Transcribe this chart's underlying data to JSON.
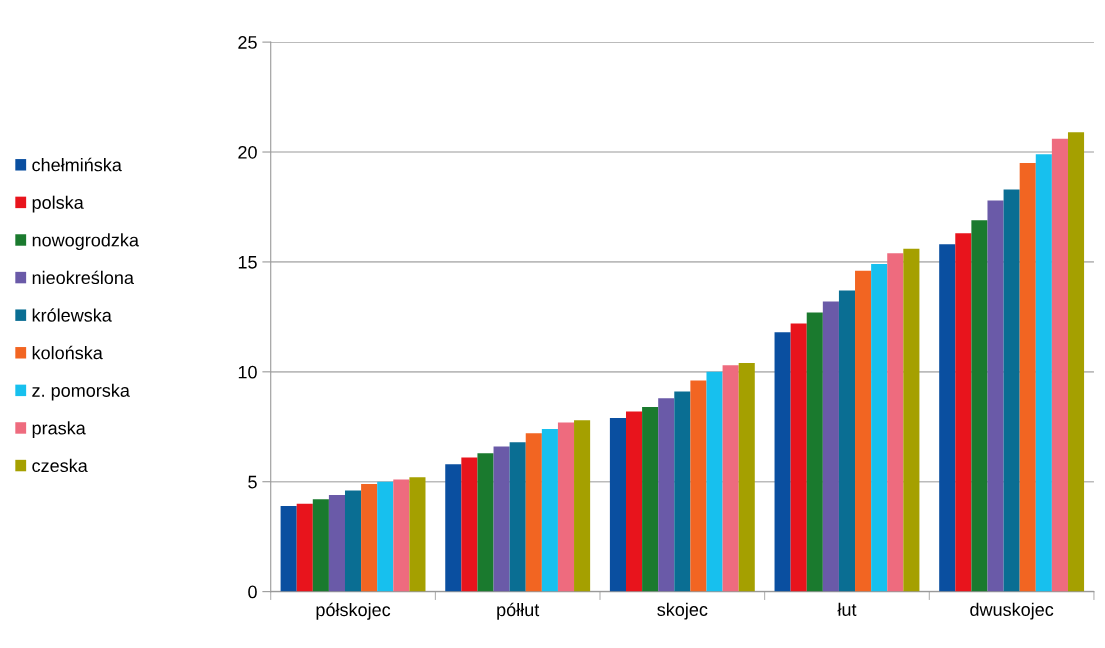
{
  "chart_data": {
    "type": "bar",
    "categories": [
      "półskojec",
      "półłut",
      "skojec",
      "łut",
      "dwuskojec"
    ],
    "series": [
      {
        "name": "chełmińska",
        "color": "#0a4fa0",
        "values": [
          3.9,
          5.8,
          7.9,
          11.8,
          15.8
        ]
      },
      {
        "name": "polska",
        "color": "#e8141c",
        "values": [
          4.0,
          6.1,
          8.2,
          12.2,
          16.3
        ]
      },
      {
        "name": "nowogrodzka",
        "color": "#1a7a2e",
        "values": [
          4.2,
          6.3,
          8.4,
          12.7,
          16.9
        ]
      },
      {
        "name": "nieokreślona",
        "color": "#6a5aa8",
        "values": [
          4.4,
          6.6,
          8.8,
          13.2,
          17.8
        ]
      },
      {
        "name": "królewska",
        "color": "#0a6e93",
        "values": [
          4.6,
          6.8,
          9.1,
          13.7,
          18.3
        ]
      },
      {
        "name": "kolońska",
        "color": "#f26522",
        "values": [
          4.9,
          7.2,
          9.6,
          14.6,
          19.5
        ]
      },
      {
        "name": "z. pomorska",
        "color": "#17c0ee",
        "values": [
          5.0,
          7.4,
          10.0,
          14.9,
          19.9
        ]
      },
      {
        "name": "praska",
        "color": "#ee6b7e",
        "values": [
          5.1,
          7.7,
          10.3,
          15.4,
          20.6
        ]
      },
      {
        "name": "czeska",
        "color": "#a5a000",
        "values": [
          5.2,
          7.8,
          10.4,
          15.6,
          20.9
        ]
      }
    ],
    "ylim": [
      0,
      25
    ],
    "yticks": [
      0,
      5,
      10,
      15,
      20,
      25
    ],
    "grid": "y",
    "legend": "left"
  }
}
